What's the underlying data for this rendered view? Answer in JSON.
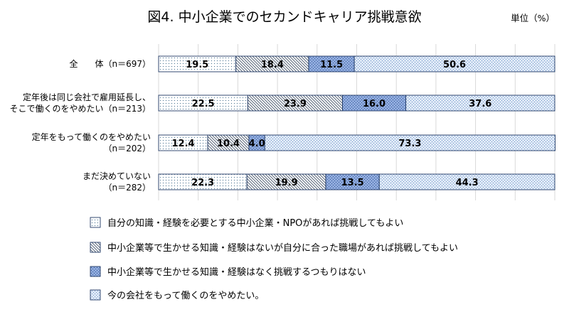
{
  "chart_data": {
    "type": "bar",
    "orientation": "horizontal",
    "stacked": "100%",
    "title": "図4. 中小企業でのセカンドキャリア挑戦意欲",
    "unit_label": "単位（%）",
    "categories": [
      [
        "全　　体（n＝697）"
      ],
      [
        "定年後は同じ会社で雇用延長し、",
        "そこで働くのをやめたい（n＝213）"
      ],
      [
        "定年をもって働くのをやめたい",
        "（n＝202）"
      ],
      [
        "まだ決めていない",
        "（n＝282）"
      ]
    ],
    "series": [
      {
        "name": "自分の知識・経験を必要とする中小企業・NPOがあれば挑戦してもよい",
        "values": [
          19.5,
          22.5,
          12.4,
          22.3
        ],
        "pattern": "dots"
      },
      {
        "name": "中小企業等で生かせる知識・経験はないが自分に合った職場があれば挑戦してもよい",
        "values": [
          18.4,
          23.9,
          10.4,
          19.9
        ],
        "pattern": "diagonal"
      },
      {
        "name": "中小企業等で生かせる知識・経験はなく挑戦するつもりはない",
        "values": [
          11.5,
          16.0,
          4.0,
          13.5
        ],
        "pattern": "dark-blue"
      },
      {
        "name": "今の会社をもって働くのをやめたい。",
        "values": [
          50.6,
          37.6,
          73.3,
          44.3
        ],
        "pattern": "light-blue-dots"
      }
    ],
    "xlim": [
      0,
      100
    ],
    "grid": true,
    "legend_position": "bottom"
  }
}
